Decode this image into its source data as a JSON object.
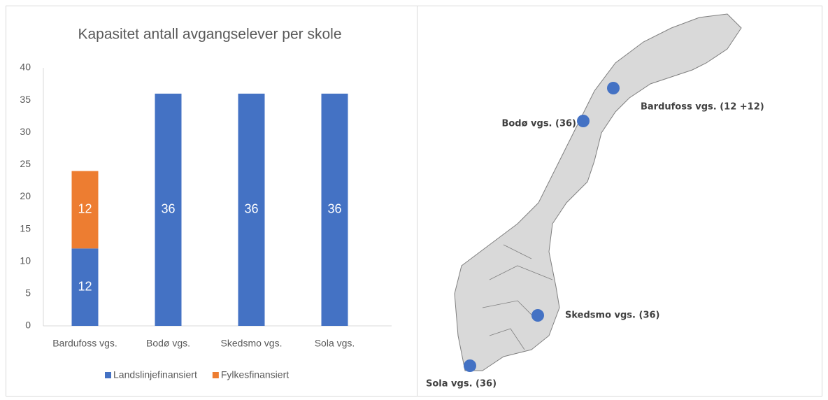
{
  "chart_data": {
    "type": "stacked_bar",
    "title": "Kapasitet antall avgangselever per skole",
    "categories": [
      "Bardufoss vgs.",
      "Bodø vgs.",
      "Skedsmo vgs.",
      "Sola vgs."
    ],
    "series": [
      {
        "name": "Landslinjefinansiert",
        "color": "#4472c4",
        "values": [
          12,
          36,
          36,
          36
        ]
      },
      {
        "name": "Fylkesfinansiert",
        "color": "#ed7d31",
        "values": [
          12,
          null,
          null,
          null
        ]
      }
    ],
    "ylim": [
      0,
      40
    ],
    "yticks": [
      0,
      5,
      10,
      15,
      20,
      25,
      30,
      35,
      40
    ],
    "grid": false,
    "legend": "bottom"
  },
  "map": {
    "labels": [
      "Bardufoss vgs. (12 +12)",
      "Bodø vgs. (36)",
      "Skedsmo vgs. (36)",
      "Sola vgs. (36)"
    ]
  }
}
